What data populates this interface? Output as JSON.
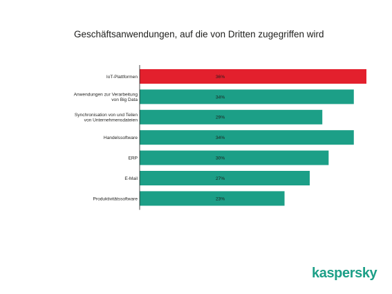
{
  "chart_data": {
    "type": "bar",
    "orientation": "horizontal",
    "title": "Geschäftsanwendungen, auf die von Dritten zugegriffen wird",
    "categories": [
      "IoT-Plattformen",
      "Anwendungen zur Verarbeitung von Big Data",
      "Synchronisation von und Teilen von Unternehmensdateien",
      "Handelssoftware",
      "ERP",
      "E-Mail",
      "Produktivitätssoftware"
    ],
    "category_lines": [
      [
        "IoT-Plattformen"
      ],
      [
        "Anwendungen zur Verarbeitung",
        "von Big Data"
      ],
      [
        "Synchronisation von und Teilen",
        "von Unternehmensdateien"
      ],
      [
        "Handelssoftware"
      ],
      [
        "ERP"
      ],
      [
        "E-Mail"
      ],
      [
        "Produktivitätssoftware"
      ]
    ],
    "values": [
      36,
      34,
      29,
      34,
      30,
      27,
      23
    ],
    "value_labels": [
      "36%",
      "34%",
      "29%",
      "34%",
      "30%",
      "27%",
      "23%"
    ],
    "highlight_index": 0,
    "colors": {
      "bar": "#1c9f87",
      "highlight": "#e3202d",
      "axis": "#1d1d1b"
    },
    "xlim": [
      0,
      36
    ],
    "grid": false,
    "legend": "none"
  },
  "brand": {
    "name": "kaspersky",
    "color": "#1c9f87"
  }
}
